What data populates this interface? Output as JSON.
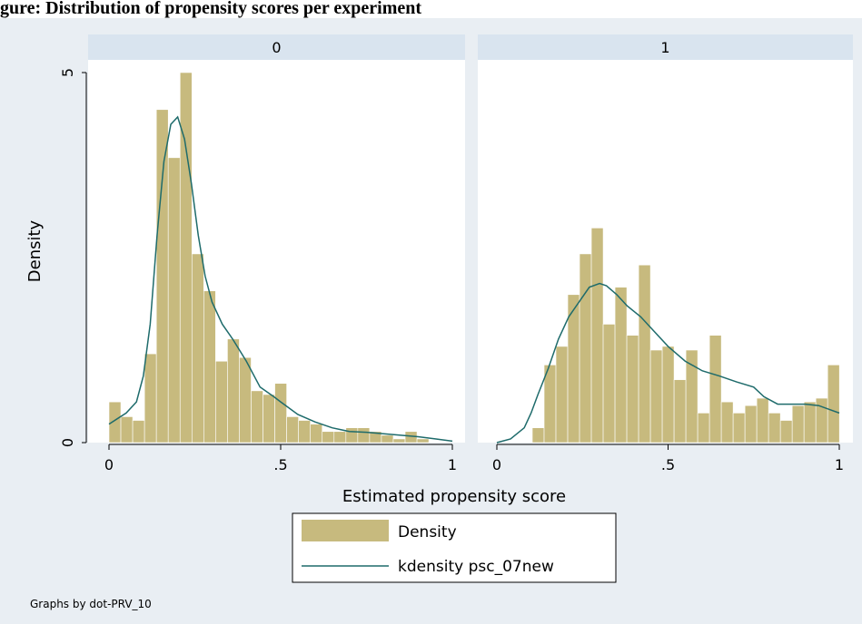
{
  "title_fragment": "gure: Distribution of propensity scores per experiment",
  "chart_data": {
    "type": "bar",
    "by_variable_note": "Graphs by dot-PRV_10",
    "xlabel": "Estimated propensity score",
    "ylabel": "Density",
    "xlim": [
      -0.05,
      1.02
    ],
    "ylim": [
      0,
      5
    ],
    "xticks": [
      0,
      0.5,
      1
    ],
    "xtick_labels": [
      "0",
      ".5",
      "1"
    ],
    "yticks": [
      0,
      5
    ],
    "ytick_labels": [
      "0",
      "5"
    ],
    "bin_width": 0.0345,
    "legend": {
      "position": "bottom",
      "entries": [
        "Density",
        "kdensity psc_07new"
      ]
    },
    "colors": {
      "bars": "#c7ba7e",
      "kde": "#1e6b6b",
      "strip": "#d9e4ef",
      "background": "#e9eef3"
    },
    "panels": [
      {
        "label": "0",
        "bin_starts": [
          0,
          0.0345,
          0.069,
          0.1035,
          0.138,
          0.1725,
          0.207,
          0.2415,
          0.276,
          0.3105,
          0.345,
          0.3795,
          0.414,
          0.4485,
          0.483,
          0.5175,
          0.552,
          0.5865,
          0.621,
          0.6555,
          0.69,
          0.7245,
          0.759,
          0.7935,
          0.828,
          0.8625,
          0.897,
          0.9315,
          0.966
        ],
        "values": [
          0.55,
          0.35,
          0.3,
          1.2,
          4.5,
          3.85,
          5.0,
          2.55,
          2.05,
          1.1,
          1.4,
          1.15,
          0.7,
          0.65,
          0.8,
          0.35,
          0.3,
          0.25,
          0.15,
          0.15,
          0.2,
          0.2,
          0.15,
          0.1,
          0.05,
          0.15,
          0.05,
          0.0,
          0.0
        ],
        "kde_x": [
          0.0,
          0.05,
          0.08,
          0.1,
          0.12,
          0.14,
          0.16,
          0.18,
          0.2,
          0.22,
          0.24,
          0.26,
          0.28,
          0.3,
          0.33,
          0.36,
          0.4,
          0.44,
          0.48,
          0.5,
          0.55,
          0.6,
          0.65,
          0.7,
          0.75,
          0.8,
          0.85,
          0.9,
          0.95,
          1.0
        ],
        "kde_y": [
          0.25,
          0.4,
          0.55,
          0.9,
          1.6,
          2.8,
          3.8,
          4.3,
          4.4,
          4.1,
          3.5,
          2.8,
          2.25,
          1.9,
          1.6,
          1.4,
          1.1,
          0.75,
          0.62,
          0.55,
          0.38,
          0.28,
          0.2,
          0.15,
          0.14,
          0.12,
          0.1,
          0.08,
          0.05,
          0.02
        ]
      },
      {
        "label": "1",
        "bin_starts": [
          0.1035,
          0.138,
          0.1725,
          0.207,
          0.2415,
          0.276,
          0.3105,
          0.345,
          0.3795,
          0.414,
          0.4485,
          0.483,
          0.5175,
          0.552,
          0.5865,
          0.621,
          0.6555,
          0.69,
          0.7245,
          0.759,
          0.7935,
          0.828,
          0.8625,
          0.897,
          0.9315,
          0.966
        ],
        "values": [
          0.2,
          1.05,
          1.3,
          2.0,
          2.55,
          2.9,
          1.6,
          2.1,
          1.45,
          2.4,
          1.25,
          1.3,
          0.85,
          1.25,
          0.4,
          1.45,
          0.55,
          0.4,
          0.5,
          0.6,
          0.4,
          0.3,
          0.5,
          0.55,
          0.6,
          1.05
        ],
        "kde_x": [
          0.0,
          0.04,
          0.08,
          0.1,
          0.12,
          0.15,
          0.18,
          0.21,
          0.24,
          0.27,
          0.3,
          0.32,
          0.35,
          0.38,
          0.42,
          0.46,
          0.5,
          0.55,
          0.6,
          0.65,
          0.7,
          0.75,
          0.78,
          0.82,
          0.86,
          0.9,
          0.94,
          0.97,
          1.0
        ],
        "kde_y": [
          0.0,
          0.05,
          0.2,
          0.4,
          0.65,
          1.0,
          1.4,
          1.7,
          1.9,
          2.1,
          2.15,
          2.12,
          2.0,
          1.85,
          1.7,
          1.5,
          1.3,
          1.1,
          0.97,
          0.9,
          0.82,
          0.75,
          0.62,
          0.52,
          0.52,
          0.52,
          0.5,
          0.45,
          0.4
        ]
      }
    ]
  }
}
